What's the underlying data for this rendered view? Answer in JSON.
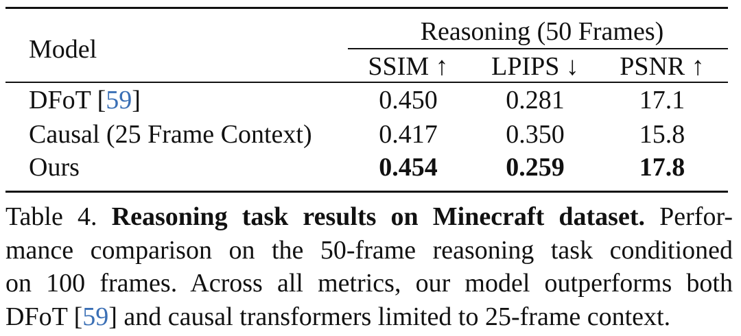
{
  "table": {
    "header": {
      "model": "Model",
      "group": "Reasoning (50 Frames)",
      "ssim": "SSIM ↑",
      "lpips": "LPIPS ↓",
      "psnr": "PSNR ↑"
    },
    "rows": [
      {
        "model": "DFoT ",
        "cite": "59",
        "model_suffix": "",
        "ssim": "0.450",
        "lpips": "0.281",
        "psnr": "17.1",
        "bold": false
      },
      {
        "model": "Causal (25 Frame Context)",
        "cite": "",
        "model_suffix": "",
        "ssim": "0.417",
        "lpips": "0.350",
        "psnr": "15.8",
        "bold": false
      },
      {
        "model": "Ours",
        "cite": "",
        "model_suffix": "",
        "ssim": "0.454",
        "lpips": "0.259",
        "psnr": "17.8",
        "bold": true
      }
    ]
  },
  "caption": {
    "label": "Table 4.",
    "bold_title": "Reasoning task results on Minecraft dataset.",
    "line1_tail": "Perfor-",
    "line2": "mance comparison on the 50-frame reasoning task conditioned",
    "line3": "on 100 frames. Across all metrics, our model outperforms both",
    "line4_a": "DFoT ",
    "line4_cite": "59",
    "line4_b": " and causal transformers limited to 25-frame context."
  },
  "colors": {
    "citation": "#3a6fb5",
    "text": "#111111"
  }
}
